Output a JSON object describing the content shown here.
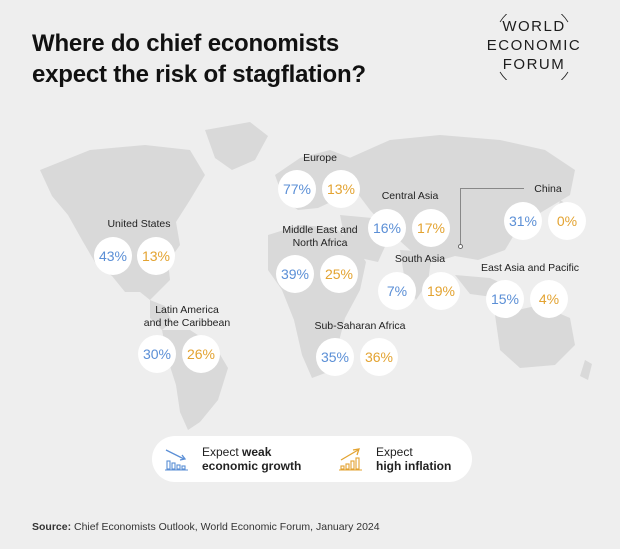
{
  "title_line1": "Where do chief economists",
  "title_line2": "expect the risk of stagflation?",
  "logo": {
    "line1": "WORLD",
    "line2": "ECONOMIC",
    "line3": "FORUM"
  },
  "colors": {
    "growth": "#5b8fd6",
    "inflation": "#e3a331",
    "map": "#d9d9d9",
    "background": "#eeeeee"
  },
  "regions": {
    "united_states": {
      "name": "United States",
      "growth": "43%",
      "inflation": "13%"
    },
    "latin_america": {
      "name_line1": "Latin America",
      "name_line2": "and the Caribbean",
      "growth": "30%",
      "inflation": "26%"
    },
    "europe": {
      "name": "Europe",
      "growth": "77%",
      "inflation": "13%"
    },
    "middle_east": {
      "name_line1": "Middle East and",
      "name_line2": "North Africa",
      "growth": "39%",
      "inflation": "25%"
    },
    "sub_saharan": {
      "name": "Sub-Saharan Africa",
      "growth": "35%",
      "inflation": "36%"
    },
    "central_asia": {
      "name": "Central Asia",
      "growth": "16%",
      "inflation": "17%"
    },
    "south_asia": {
      "name": "South Asia",
      "growth": "7%",
      "inflation": "19%"
    },
    "china": {
      "name": "China",
      "growth": "31%",
      "inflation": "0%"
    },
    "east_asia": {
      "name": "East Asia and Pacific",
      "growth": "15%",
      "inflation": "4%"
    }
  },
  "legend": {
    "growth_line1_prefix": "Expect ",
    "growth_line1_bold": "weak",
    "growth_line2": "economic growth",
    "growth_icon": "declining-bar-chart-icon",
    "inflation_line1": "Expect",
    "inflation_line2": "high inflation",
    "inflation_icon": "rising-bar-chart-icon"
  },
  "source": {
    "label": "Source:",
    "text": " Chief Economists Outlook, World Economic Forum, January 2024"
  }
}
